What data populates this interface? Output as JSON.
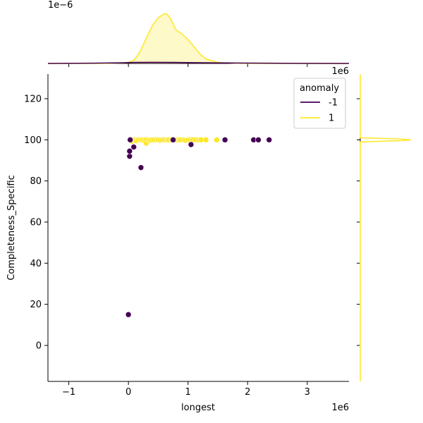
{
  "chart_data": {
    "type": "scatter",
    "xlabel": "longest",
    "ylabel": "Completeness_Specific",
    "x_offset_label": "1e6",
    "y_offset_label": "",
    "top_marginal_offset_label": "1e−6",
    "right_marginal_offset_label": "1e6",
    "xlim": [
      -1.35,
      3.7
    ],
    "ylim": [
      -17.5,
      132
    ],
    "x_ticks": [
      {
        "value": -1,
        "label": "−1"
      },
      {
        "value": 0,
        "label": "0"
      },
      {
        "value": 1,
        "label": "1"
      },
      {
        "value": 2,
        "label": "2"
      },
      {
        "value": 3,
        "label": "3"
      }
    ],
    "y_ticks": [
      {
        "value": 0,
        "label": "0"
      },
      {
        "value": 20,
        "label": "20"
      },
      {
        "value": 40,
        "label": "40"
      },
      {
        "value": 60,
        "label": "60"
      },
      {
        "value": 80,
        "label": "80"
      },
      {
        "value": 100,
        "label": "100"
      },
      {
        "value": 120,
        "label": "120"
      }
    ],
    "legend": {
      "title": "anomaly",
      "placement": "top-right",
      "entries": [
        {
          "label": "-1",
          "color": "#440154"
        },
        {
          "label": "1",
          "color": "#fde725"
        }
      ]
    },
    "series": [
      {
        "name": "1",
        "color": "#fde725",
        "points": [
          [
            0.06,
            99.3
          ],
          [
            0.1,
            100
          ],
          [
            0.13,
            99.5
          ],
          [
            0.16,
            100
          ],
          [
            0.2,
            100
          ],
          [
            0.23,
            100
          ],
          [
            0.26,
            99.6
          ],
          [
            0.29,
            100
          ],
          [
            0.3,
            98.4
          ],
          [
            0.33,
            100
          ],
          [
            0.36,
            99.7
          ],
          [
            0.39,
            100
          ],
          [
            0.43,
            100
          ],
          [
            0.47,
            100
          ],
          [
            0.5,
            100
          ],
          [
            0.53,
            99.8
          ],
          [
            0.57,
            100
          ],
          [
            0.61,
            100
          ],
          [
            0.65,
            100
          ],
          [
            0.68,
            100
          ],
          [
            0.72,
            100
          ],
          [
            0.8,
            100
          ],
          [
            0.85,
            100
          ],
          [
            0.88,
            100
          ],
          [
            0.93,
            100
          ],
          [
            0.96,
            99.7
          ],
          [
            1.0,
            100
          ],
          [
            1.04,
            100
          ],
          [
            1.08,
            100
          ],
          [
            1.13,
            100
          ],
          [
            1.18,
            100
          ],
          [
            1.22,
            100
          ],
          [
            1.3,
            100
          ],
          [
            1.48,
            100
          ]
        ]
      },
      {
        "name": "-1",
        "color": "#440154",
        "points": [
          [
            0.0,
            15.0
          ],
          [
            0.02,
            92.0
          ],
          [
            0.02,
            94.5
          ],
          [
            0.03,
            100.0
          ],
          [
            0.09,
            96.5
          ],
          [
            0.21,
            86.5
          ],
          [
            0.75,
            100.0
          ],
          [
            1.05,
            97.7
          ],
          [
            1.62,
            100.0
          ],
          [
            2.1,
            100.0
          ],
          [
            2.18,
            100.0
          ],
          [
            2.36,
            100.0
          ]
        ]
      }
    ],
    "top_marginal": {
      "series": [
        {
          "name": "1",
          "color": "#fde725",
          "density_x": [
            -1.35,
            -0.5,
            -0.1,
            0.0,
            0.1,
            0.2,
            0.3,
            0.4,
            0.5,
            0.6,
            0.65,
            0.7,
            0.75,
            0.8,
            0.9,
            1.0,
            1.1,
            1.2,
            1.3,
            1.5,
            1.8,
            2.2,
            3.7
          ],
          "density": [
            0.0,
            0.0,
            0.01,
            0.02,
            0.07,
            0.24,
            0.5,
            0.74,
            0.9,
            0.98,
            0.97,
            0.89,
            0.78,
            0.66,
            0.58,
            0.47,
            0.33,
            0.19,
            0.09,
            0.02,
            0.004,
            0.0,
            0.0
          ]
        },
        {
          "name": "-1",
          "color": "#440154",
          "density_x": [
            -1.35,
            -0.6,
            -0.2,
            0.1,
            0.4,
            0.8,
            1.3,
            1.8,
            2.3,
            2.8,
            3.7
          ],
          "density": [
            0.0,
            0.005,
            0.012,
            0.02,
            0.022,
            0.02,
            0.014,
            0.009,
            0.005,
            0.002,
            0.0
          ]
        }
      ]
    },
    "right_marginal": {
      "series": [
        {
          "name": "1",
          "color": "#fde725",
          "density_y": [
            -17.5,
            99.0,
            99.6,
            100.0,
            100.4,
            101.0,
            132
          ],
          "density": [
            0.0,
            0.0,
            0.8,
            1.0,
            0.8,
            0.0,
            0.0
          ]
        }
      ]
    }
  }
}
